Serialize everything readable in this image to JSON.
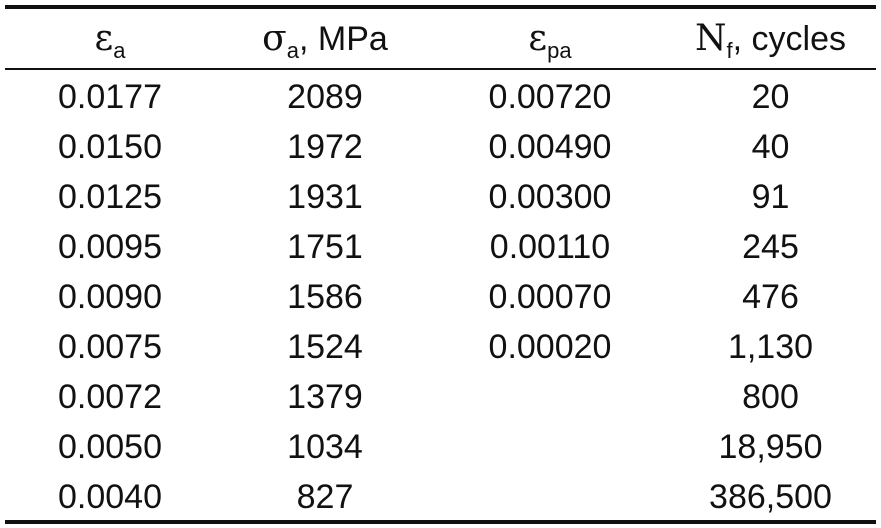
{
  "table": {
    "headers": [
      {
        "symbol": "ε",
        "sub": "a",
        "rest": ""
      },
      {
        "symbol": "σ",
        "sub": "a",
        "rest": ", MPa"
      },
      {
        "symbol": "ε",
        "sub": "pa",
        "rest": ""
      },
      {
        "symbol": "N",
        "sub": "f",
        "rest": ", cycles"
      }
    ],
    "rows": [
      [
        "0.0177",
        "2089",
        "0.00720",
        "20"
      ],
      [
        "0.0150",
        "1972",
        "0.00490",
        "40"
      ],
      [
        "0.0125",
        "1931",
        "0.00300",
        "91"
      ],
      [
        "0.0095",
        "1751",
        "0.00110",
        "245"
      ],
      [
        "0.0090",
        "1586",
        "0.00070",
        "476"
      ],
      [
        "0.0075",
        "1524",
        "0.00020",
        "1,130"
      ],
      [
        "0.0072",
        "1379",
        "",
        "800"
      ],
      [
        "0.0050",
        "1034",
        "",
        "18,950"
      ],
      [
        "0.0040",
        "827",
        "",
        "386,500"
      ]
    ]
  }
}
